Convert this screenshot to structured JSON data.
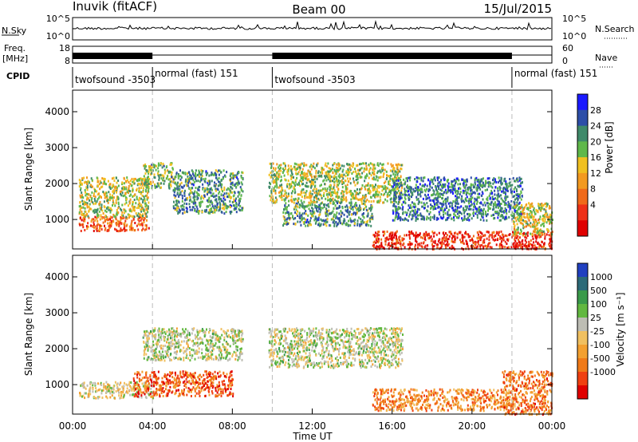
{
  "header": {
    "station": "Inuvik (fitACF)",
    "beam": "Beam 00",
    "date": "15/Jul/2015"
  },
  "top_panel": {
    "nsky_label": "N.Sky",
    "nsky_ticks": [
      "10^5",
      "10^0"
    ],
    "nsearch_label": "N.Search",
    "nsearch_ticks": [
      "10^5",
      "10^0"
    ],
    "freq_label_line1": "Freq.",
    "freq_label_line2": "[MHz]",
    "freq_ticks": [
      "18",
      "8"
    ],
    "nave_label": "Nave",
    "nave_ticks": [
      "60",
      "0"
    ],
    "cpid_label": "CPID",
    "cpid_segments": [
      {
        "name": "twofsound -3503",
        "start": 0.0,
        "end": 4.0
      },
      {
        "name": "normal (fast) 151",
        "start": 4.0,
        "end": 10.0
      },
      {
        "name": "twofsound -3503",
        "start": 10.0,
        "end": 22.0
      },
      {
        "name": "normal (fast) 151",
        "start": 22.0,
        "end": 24.0
      }
    ]
  },
  "chart_data": [
    {
      "type": "heatmap",
      "panel": "power",
      "ylabel": "Slant Range [km]",
      "xlim": [
        0,
        24
      ],
      "ylim": [
        180,
        4600
      ],
      "yticks": [
        "1000",
        "2000",
        "3000",
        "4000"
      ],
      "colorbar_label": "Power [dB]",
      "colorbar_ticks": [
        "4",
        "8",
        "12",
        "16",
        "20",
        "24",
        "28"
      ],
      "colorbar_colors": [
        "#1a1aff",
        "#2d4ea8",
        "#3f8a6a",
        "#5fb84a",
        "#f0c020",
        "#f39a20",
        "#f06a1a",
        "#ee3018",
        "#e00000"
      ],
      "scatter_bands": [
        {
          "start": 0.3,
          "end": 3.8,
          "range_min": 700,
          "range_max": 1100,
          "level": 0.75
        },
        {
          "start": 0.3,
          "end": 3.8,
          "range_min": 1100,
          "range_max": 2200,
          "level": 0.45
        },
        {
          "start": 3.5,
          "end": 5.0,
          "range_min": 1900,
          "range_max": 2600,
          "level": 0.4
        },
        {
          "start": 5.0,
          "end": 8.5,
          "range_min": 1200,
          "range_max": 2400,
          "level": 0.3
        },
        {
          "start": 9.8,
          "end": 16.5,
          "range_min": 1500,
          "range_max": 2600,
          "level": 0.45
        },
        {
          "start": 10.5,
          "end": 15.0,
          "range_min": 850,
          "range_max": 1500,
          "level": 0.3
        },
        {
          "start": 16.0,
          "end": 22.5,
          "range_min": 1000,
          "range_max": 2200,
          "level": 0.25
        },
        {
          "start": 15.0,
          "end": 24.0,
          "range_min": 200,
          "range_max": 700,
          "level": 0.85
        },
        {
          "start": 22.0,
          "end": 24.0,
          "range_min": 600,
          "range_max": 1500,
          "level": 0.5
        }
      ]
    },
    {
      "type": "heatmap",
      "panel": "velocity",
      "ylabel": "Slant Range [km]",
      "xlabel": "Time UT",
      "xlim": [
        0,
        24
      ],
      "ylim": [
        180,
        4600
      ],
      "yticks": [
        "1000",
        "2000",
        "3000",
        "4000"
      ],
      "xticks": [
        "00:00",
        "04:00",
        "08:00",
        "12:00",
        "16:00",
        "20:00",
        "00:00"
      ],
      "colorbar_label": "Velocity [m s⁻¹]",
      "colorbar_ticks": [
        "1000",
        "500",
        "100",
        "25",
        "-25",
        "-100",
        "-500",
        "-1000"
      ],
      "colorbar_colors": [
        "#2040c0",
        "#2c6a78",
        "#3a9a4a",
        "#62b840",
        "#bdbdb4",
        "#f0c060",
        "#f3a030",
        "#f07a18",
        "#f04010",
        "#e00000"
      ],
      "scatter_bands": [
        {
          "start": 0.3,
          "end": 4.0,
          "range_min": 650,
          "range_max": 1100,
          "level": 0.5
        },
        {
          "start": 3.5,
          "end": 8.5,
          "range_min": 1700,
          "range_max": 2600,
          "level": 0.45
        },
        {
          "start": 3.0,
          "end": 8.0,
          "range_min": 700,
          "range_max": 1400,
          "level": 0.8
        },
        {
          "start": 9.8,
          "end": 16.5,
          "range_min": 1500,
          "range_max": 2600,
          "level": 0.45
        },
        {
          "start": 15.0,
          "end": 22.0,
          "range_min": 300,
          "range_max": 900,
          "level": 0.7
        },
        {
          "start": 21.5,
          "end": 24.0,
          "range_min": 200,
          "range_max": 1400,
          "level": 0.75
        }
      ]
    }
  ]
}
